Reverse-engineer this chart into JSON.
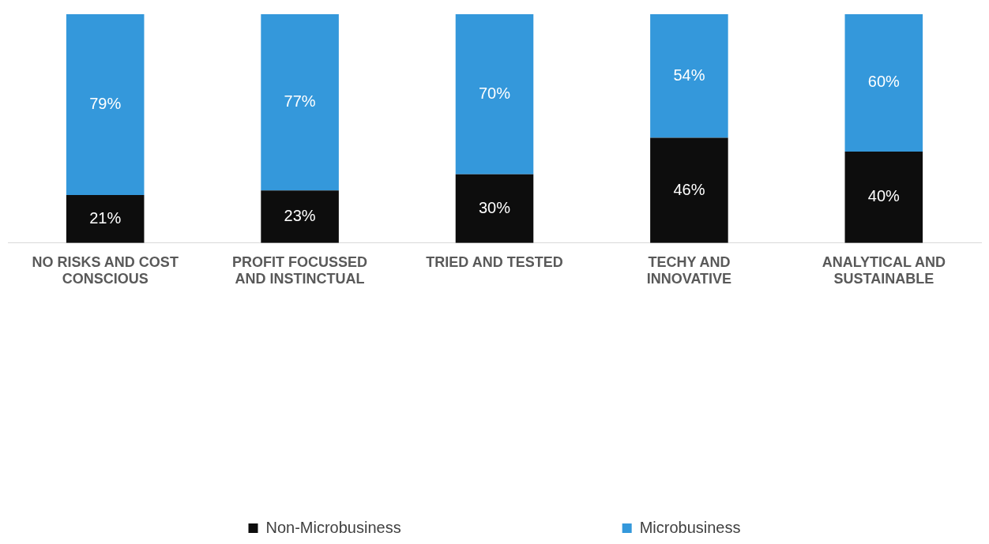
{
  "chart_data": {
    "type": "bar",
    "stacked": true,
    "categories": [
      "NO RISKS AND COST CONSCIOUS",
      "PROFIT FOCUSSED AND INSTINCTUAL",
      "TRIED AND TESTED",
      "TECHY AND INNOVATIVE",
      "ANALYTICAL AND SUSTAINABLE"
    ],
    "series": [
      {
        "name": "Non-Microbusiness",
        "color": "#0d0d0d",
        "values": [
          21,
          23,
          30,
          46,
          40
        ],
        "value_labels": [
          "21%",
          "23%",
          "30%",
          "46%",
          "40%"
        ]
      },
      {
        "name": "Microbusiness",
        "color": "#3498db",
        "values": [
          79,
          77,
          70,
          54,
          60
        ],
        "value_labels": [
          "79%",
          "77%",
          "70%",
          "54%",
          "60%"
        ]
      }
    ],
    "ylim": [
      0,
      100
    ],
    "tick_labels": "x",
    "grid": false,
    "legend": "bottom"
  }
}
